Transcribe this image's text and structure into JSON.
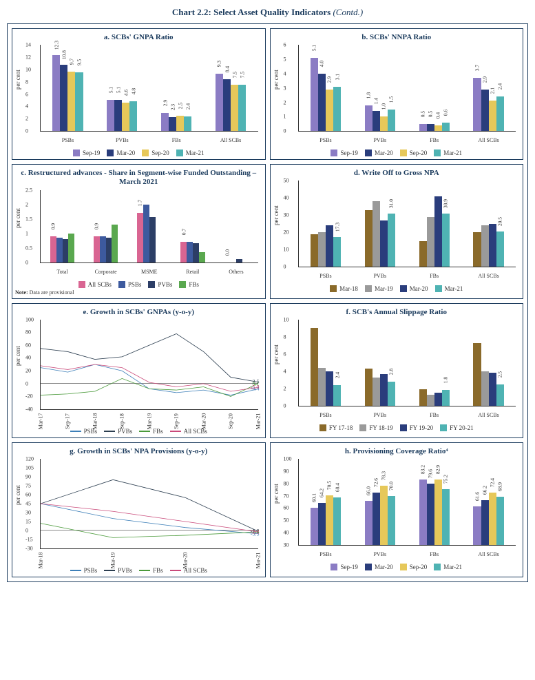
{
  "page_title_main": "Chart 2.2: Select Asset Quality Indicators",
  "page_title_contd": " (Contd.)",
  "ylabel_percent": "per cent",
  "colors": {
    "purple": "#8b7cc4",
    "navy": "#2a3d7c",
    "gold": "#e6c85a",
    "teal": "#4fb3b3",
    "pink": "#d96592",
    "midblue": "#3d5a9e",
    "darknavy": "#2c3e66",
    "green": "#5aa84f",
    "brown": "#8a6a2a",
    "grey": "#9a9a9a",
    "blue_line": "#3d7fb8",
    "dark_line": "#2c3e50",
    "green_line": "#4a9a3a",
    "pink_line": "#c94a7a"
  },
  "chart_a": {
    "title": "a. SCBs' GNPA Ratio",
    "type": "grouped-bar",
    "categories": [
      "PSBs",
      "PVBs",
      "FBs",
      "All SCBs"
    ],
    "series": [
      {
        "name": "Sep-19",
        "values": [
          12.3,
          5.1,
          2.9,
          9.3
        ]
      },
      {
        "name": "Mar-20",
        "values": [
          10.8,
          5.1,
          2.3,
          8.4
        ]
      },
      {
        "name": "Sep-20",
        "values": [
          9.7,
          4.6,
          2.5,
          7.5
        ]
      },
      {
        "name": "Mar-21",
        "values": [
          9.5,
          4.8,
          2.4,
          7.5
        ]
      }
    ],
    "ylim": [
      0,
      14
    ],
    "ytick_step": 2,
    "value_labels": [
      [
        "12.3",
        "10.8",
        "9.7",
        "9.5"
      ],
      [
        "5.1",
        "5.1",
        "4.6",
        "4.8"
      ],
      [
        "2.9",
        "2.3",
        "2.5",
        "2.4"
      ],
      [
        "9.3",
        "8.4",
        "7.5",
        "7.5"
      ]
    ]
  },
  "chart_b": {
    "title": "b. SCBs' NNPA Ratio",
    "type": "grouped-bar",
    "categories": [
      "PSBs",
      "PVBs",
      "FBs",
      "All SCBs"
    ],
    "series": [
      {
        "name": "Sep-19",
        "values": [
          5.1,
          1.8,
          0.5,
          3.7
        ]
      },
      {
        "name": "Mar-20",
        "values": [
          4.0,
          1.4,
          0.5,
          2.9
        ]
      },
      {
        "name": "Sep-20",
        "values": [
          2.9,
          1.0,
          0.4,
          2.1
        ]
      },
      {
        "name": "Mar-21",
        "values": [
          3.1,
          1.5,
          0.6,
          2.4
        ]
      }
    ],
    "ylim": [
      0,
      6
    ],
    "ytick_step": 1,
    "value_labels": [
      [
        "5.1",
        "4.0",
        "2.9",
        "3.1"
      ],
      [
        "1.8",
        "1.4",
        "1.0",
        "1.5"
      ],
      [
        "0.5",
        "0.5",
        "0.4",
        "0.6"
      ],
      [
        "3.7",
        "2.9",
        "2.1",
        "2.4"
      ]
    ]
  },
  "chart_c": {
    "title": "c. Restructured advances - Share in Segment-wise  Funded Outstanding  – March 2021",
    "type": "grouped-bar",
    "note": "Note: Data are provisional",
    "categories": [
      "Total",
      "Corporate",
      "MSME",
      "Retail",
      "Others"
    ],
    "series": [
      {
        "name": "All SCBs",
        "values": [
          0.9,
          0.9,
          1.7,
          0.7,
          0.0
        ]
      },
      {
        "name": "PSBs",
        "values": [
          0.85,
          0.9,
          2.0,
          0.7,
          0.0
        ]
      },
      {
        "name": "PVBs",
        "values": [
          0.8,
          0.85,
          1.55,
          0.65,
          0.12
        ]
      },
      {
        "name": "FBs",
        "values": [
          1.0,
          1.3,
          0.0,
          0.35,
          0.0
        ]
      }
    ],
    "ylim": [
      0,
      2.5
    ],
    "ytick_step": 0.5,
    "value_labels": [
      [
        "0.9",
        "",
        "",
        ""
      ],
      [
        "0.9",
        "",
        "",
        ""
      ],
      [
        "1.7",
        "",
        "",
        ""
      ],
      [
        "0.7",
        "",
        "",
        ""
      ],
      [
        "0.0",
        "",
        "",
        ""
      ]
    ]
  },
  "chart_d": {
    "title": "d. Write Off to Gross NPA",
    "type": "grouped-bar",
    "categories": [
      "PSBs",
      "PVBs",
      "FBs",
      "All SCBs"
    ],
    "series": [
      {
        "name": "Mar-18",
        "values": [
          19,
          33,
          15,
          20
        ]
      },
      {
        "name": "Mar-19",
        "values": [
          20,
          38,
          29,
          24
        ]
      },
      {
        "name": "Mar-20",
        "values": [
          24,
          27,
          41,
          25
        ]
      },
      {
        "name": "Mar-21",
        "values": [
          17.3,
          31.0,
          30.9,
          20.5
        ]
      }
    ],
    "ylim": [
      0,
      50
    ],
    "ytick_step": 10,
    "value_labels": [
      [
        "",
        "",
        "",
        "17.3"
      ],
      [
        "",
        "",
        "",
        "31.0"
      ],
      [
        "",
        "",
        "",
        "30.9"
      ],
      [
        "",
        "",
        "",
        "20.5"
      ]
    ]
  },
  "chart_e": {
    "title": "e. Growth in SCBs' GNPAs (y-o-y)",
    "type": "line",
    "x_labels": [
      "Mar-17",
      "Sep-17",
      "Mar-18",
      "Sep-18",
      "Mar-19",
      "Sep-19",
      "Mar-20",
      "Sep-20",
      "Mar-21"
    ],
    "ylim": [
      -40,
      100
    ],
    "ytick_step": 20,
    "series": [
      {
        "name": "PSBs",
        "color": "blue_line",
        "values": [
          25,
          18,
          30,
          20,
          -8,
          -14,
          -10,
          -18,
          -8.4
        ],
        "end_label": "-8.4"
      },
      {
        "name": "PVBs",
        "color": "dark_line",
        "values": [
          55,
          50,
          38,
          42,
          60,
          78,
          50,
          10,
          2.5
        ],
        "end_label": "2.5"
      },
      {
        "name": "FBs",
        "color": "green_line",
        "values": [
          -18,
          -16,
          -12,
          8,
          -8,
          -10,
          -5,
          -20,
          0.1
        ],
        "end_label": "0.1"
      },
      {
        "name": "All SCBs",
        "color": "pink_line",
        "values": [
          28,
          22,
          30,
          25,
          2,
          -5,
          0,
          -12,
          -5.9
        ],
        "end_label": "-5.9"
      }
    ]
  },
  "chart_f": {
    "title": "f. SCB's Annual Slippage Ratio",
    "type": "grouped-bar",
    "categories": [
      "PSBs",
      "PVBs",
      "FBs",
      "All SCBs"
    ],
    "series": [
      {
        "name": "FY 17-18",
        "values": [
          9.0,
          4.3,
          1.9,
          7.3
        ]
      },
      {
        "name": "FY 18-19",
        "values": [
          4.4,
          3.3,
          1.3,
          4.0
        ]
      },
      {
        "name": "FY 19-20",
        "values": [
          4.0,
          3.7,
          1.5,
          3.8
        ]
      },
      {
        "name": "FY 20-21",
        "values": [
          2.4,
          2.8,
          1.8,
          2.5
        ]
      }
    ],
    "ylim": [
      0,
      10
    ],
    "ytick_step": 2,
    "value_labels": [
      [
        "",
        "",
        "",
        "2.4"
      ],
      [
        "",
        "",
        "",
        "2.8"
      ],
      [
        "",
        "",
        "",
        "1.8"
      ],
      [
        "",
        "",
        "",
        "2.5"
      ]
    ]
  },
  "chart_g": {
    "title": "g. Growth in SCBs' NPA Provisions (y-o-y)",
    "type": "line",
    "x_labels": [
      "Mar-18",
      "Mar-19",
      "Mar-20",
      "Mar-21"
    ],
    "ylim": [
      -30,
      120
    ],
    "ytick_step": 15,
    "series": [
      {
        "name": "PSBs",
        "color": "blue_line",
        "values": [
          45,
          20,
          5,
          -5.5
        ],
        "end_label": "-5.5"
      },
      {
        "name": "PVBs",
        "color": "dark_line",
        "values": [
          45,
          85,
          55,
          -1.2
        ],
        "end_label": "-1.2"
      },
      {
        "name": "FBs",
        "color": "green_line",
        "values": [
          12,
          -12,
          -8,
          -2.4
        ],
        "end_label": "-2.4"
      },
      {
        "name": "All SCBs",
        "color": "pink_line",
        "values": [
          45,
          32,
          15,
          -2.2
        ],
        "end_label": "-2.2"
      }
    ]
  },
  "chart_h": {
    "title": "h. Provisioning Coverage Ratio⁴",
    "type": "grouped-bar",
    "categories": [
      "PSBs",
      "PVBs",
      "FBs",
      "All SCBs"
    ],
    "series": [
      {
        "name": "Sep-19",
        "values": [
          60.1,
          66.0,
          83.2,
          61.6
        ]
      },
      {
        "name": "Mar-20",
        "values": [
          64.2,
          72.6,
          79.6,
          66.2
        ]
      },
      {
        "name": "Sep-20",
        "values": [
          70.5,
          78.3,
          82.9,
          72.4
        ]
      },
      {
        "name": "Mar-21",
        "values": [
          68.4,
          70.0,
          75.2,
          68.9
        ]
      }
    ],
    "ylim": [
      30,
      100
    ],
    "ytick_step": 10,
    "value_labels": [
      [
        "60.1",
        "64.2",
        "70.5",
        "68.4"
      ],
      [
        "66.0",
        "72.6",
        "78.3",
        "70.0"
      ],
      [
        "83.2",
        "79.6",
        "82.9",
        "75.2"
      ],
      [
        "61.6",
        "66.2",
        "72.4",
        "68.9"
      ]
    ]
  }
}
